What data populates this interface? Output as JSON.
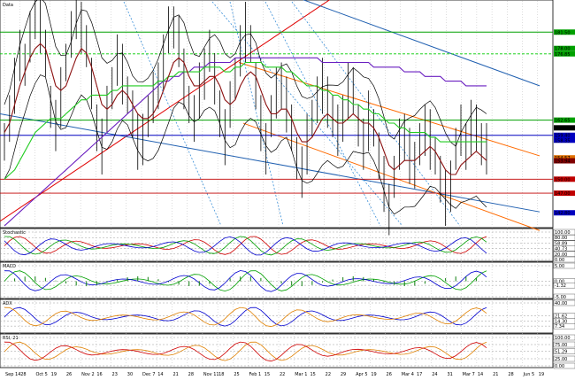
{
  "chart_data": {
    "type": "candlestick",
    "title": "",
    "xlabel": "",
    "ylabel": "",
    "x_ticks": [
      "Sep 14",
      "28",
      "Oct 5",
      "19",
      "26",
      "Nov 2",
      "16",
      "23",
      "30",
      "Dec 7",
      "14",
      "21",
      "28",
      "Nov 11",
      "18",
      "25",
      "Feb 1",
      "15",
      "22",
      "Mar 1",
      "15",
      "22",
      "29",
      "Apr 5",
      "19",
      "26",
      "Mar 4",
      "17",
      "24",
      "31",
      "Mar 7",
      "14",
      "21",
      "28",
      "Jun 5",
      "19"
    ],
    "ylim": [
      140,
      188
    ],
    "price_ticks": [
      {
        "value": 181.5,
        "label": "181.50",
        "color": "#00a000"
      },
      {
        "value": 178.0,
        "label": "178.00",
        "color": "#00a000"
      },
      {
        "value": 176.85,
        "label": "176.85",
        "color": "#00a000"
      },
      {
        "value": 162.65,
        "label": "162.65",
        "color": "#00a000"
      },
      {
        "value": 161.0,
        "label": "161.00",
        "color": "#000000"
      },
      {
        "value": 159.4,
        "label": "159.40",
        "color": "#0000c0"
      },
      {
        "value": 158.35,
        "label": "158.35",
        "color": "#0000c0"
      },
      {
        "value": 154.57,
        "label": "154.57",
        "color": "#e07000"
      },
      {
        "value": 153.94,
        "label": "153.94",
        "color": "#800000"
      },
      {
        "value": 150.0,
        "label": "150.00",
        "color": "#c00000"
      },
      {
        "value": 147.0,
        "label": "147.00",
        "color": "#c00000"
      },
      {
        "value": 142.8,
        "label": "142.80",
        "color": "#0000c0"
      }
    ],
    "horizontal_levels": [
      {
        "value": 181.5,
        "color": "#00a000"
      },
      {
        "value": 176.85,
        "color": "#00cc00",
        "style": "dashed"
      },
      {
        "value": 162.65,
        "color": "#00a000"
      },
      {
        "value": 159.4,
        "color": "#0000c0"
      },
      {
        "value": 150.0,
        "color": "#c00000"
      },
      {
        "value": 147.0,
        "color": "#c00000"
      }
    ],
    "close_series": [
      158,
      163,
      170,
      178,
      174,
      180,
      186,
      184,
      176,
      166,
      162,
      168,
      175,
      181,
      186,
      184,
      178,
      170,
      162,
      158,
      164,
      170,
      176,
      173,
      168,
      164,
      158,
      160,
      163,
      167,
      171,
      176,
      181,
      183,
      180,
      172,
      166,
      163,
      169,
      174,
      177,
      171,
      165,
      160,
      165,
      172,
      178,
      182,
      179,
      170,
      162,
      158,
      163,
      168,
      171,
      167,
      160,
      155,
      152,
      158,
      163,
      167,
      170,
      168,
      163,
      160,
      164,
      170,
      168,
      162,
      158,
      163,
      161,
      155,
      149,
      145,
      150,
      157,
      160,
      156,
      152,
      158,
      161,
      159,
      155,
      150,
      146,
      150,
      156,
      160,
      158,
      162,
      160,
      158,
      157
    ],
    "ma_short": [
      160,
      162,
      166,
      170,
      173,
      176,
      178,
      179,
      178,
      174,
      170,
      169,
      170,
      173,
      176,
      178,
      177,
      174,
      170,
      166,
      165,
      166,
      168,
      169,
      168,
      166,
      164,
      163,
      163,
      164,
      166,
      169,
      172,
      175,
      176,
      175,
      172,
      170,
      170,
      171,
      172,
      172,
      170,
      167,
      166,
      167,
      170,
      172,
      173,
      172,
      169,
      166,
      164,
      164,
      165,
      165,
      163,
      160,
      158,
      158,
      159,
      161,
      163,
      164,
      163,
      162,
      162,
      163,
      164,
      163,
      162,
      162,
      161,
      159,
      156,
      153,
      152,
      153,
      154,
      154,
      154,
      155,
      156,
      157,
      156,
      154,
      152,
      151,
      151,
      153,
      154,
      155,
      156,
      155,
      154
    ],
    "ma_mid_green": [
      150,
      151,
      152,
      154,
      156,
      158,
      160,
      161,
      162,
      163,
      163,
      163,
      164,
      165,
      166,
      167,
      167,
      168,
      168,
      168,
      168,
      169,
      169,
      170,
      170,
      170,
      170,
      170,
      170,
      170,
      171,
      171,
      172,
      172,
      173,
      173,
      173,
      173,
      173,
      174,
      174,
      174,
      174,
      173,
      173,
      174,
      174,
      175,
      175,
      175,
      175,
      174,
      174,
      174,
      174,
      173,
      173,
      172,
      171,
      170,
      170,
      170,
      169,
      169,
      168,
      168,
      167,
      167,
      166,
      166,
      165,
      165,
      164,
      164,
      163,
      162,
      162,
      161,
      161,
      160,
      160,
      160,
      160,
      159,
      159,
      158,
      158,
      158,
      158,
      158,
      158,
      158,
      158,
      158,
      158
    ],
    "ma_long_purple": [
      140,
      141,
      142,
      143,
      144,
      145,
      146,
      147,
      148,
      149,
      150,
      151,
      152,
      153,
      154,
      155,
      156,
      157,
      158,
      159,
      160,
      161,
      162,
      163,
      164,
      165,
      166,
      167,
      168,
      169,
      170,
      171,
      171,
      172,
      172,
      173,
      173,
      174,
      174,
      174,
      175,
      175,
      175,
      175,
      175,
      176,
      176,
      176,
      176,
      176,
      176,
      176,
      176,
      176,
      176,
      176,
      176,
      176,
      176,
      176,
      176,
      176,
      175,
      175,
      175,
      175,
      175,
      175,
      175,
      175,
      175,
      175,
      174,
      174,
      174,
      174,
      174,
      174,
      173,
      173,
      173,
      173,
      172,
      172,
      172,
      172,
      171,
      171,
      171,
      171,
      170,
      170,
      170,
      170,
      170
    ],
    "indicators": [
      {
        "name": "Stochastic",
        "levels": [
          {
            "value": 100,
            "label": "100.00"
          },
          {
            "value": 80,
            "label": "80.00"
          },
          {
            "value": 58.89,
            "label": "58.89"
          },
          {
            "value": 40.73,
            "label": "40.73"
          },
          {
            "value": 20,
            "label": "20.00"
          },
          {
            "value": 0,
            "label": "0.00"
          }
        ]
      },
      {
        "name": "MACD",
        "levels": [
          {
            "value": 5,
            "label": "5.00"
          },
          {
            "value": 0,
            "label": "0.00"
          },
          {
            "value": -1.32,
            "label": "-1.32"
          },
          {
            "value": -5,
            "label": "-5.00"
          }
        ]
      },
      {
        "name": "ADX",
        "levels": [
          {
            "value": 40,
            "label": "40.00"
          },
          {
            "value": 21.62,
            "label": "21.62"
          },
          {
            "value": 14.3,
            "label": "14.30"
          },
          {
            "value": 7.34,
            "label": "7.34"
          }
        ]
      },
      {
        "name": "RSI, 21",
        "levels": [
          {
            "value": 100,
            "label": "100.00"
          },
          {
            "value": 75,
            "label": "75.00"
          },
          {
            "value": 51.29,
            "label": "51.29"
          },
          {
            "value": 25,
            "label": "25.00"
          },
          {
            "value": 0,
            "label": "0.00"
          }
        ]
      }
    ]
  },
  "panes": {
    "main_label": "Data",
    "stoch_label": "Stochastic",
    "macd_label": "MACD",
    "adx_label": "ADX",
    "rsi_label": "RSI, 21"
  },
  "colors": {
    "ma_short": "#8b1010",
    "ma_mid": "#22cc22",
    "ma_long": "#6a1fc0",
    "band": "#000000",
    "channel_blue": "#1f5fb0",
    "channel_orange": "#ff6a00",
    "red_line": "#e00000",
    "fib_dotted": "#3a8fd8"
  }
}
